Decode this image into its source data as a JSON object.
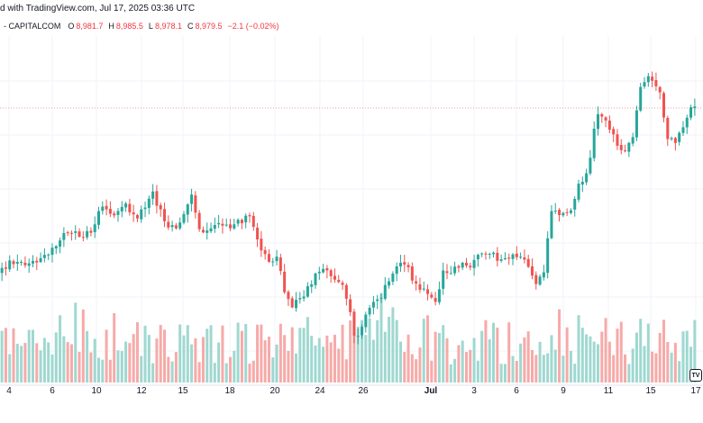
{
  "header": {
    "published": "d with TradingView.com, Jul 17, 2025 03:36 UTC",
    "symbol": "- CAPITALCOM",
    "o_label": "O",
    "o_value": "8,981.7",
    "h_label": "H",
    "h_value": "8,985.5",
    "l_label": "L",
    "l_value": "8,978.1",
    "c_label": "C",
    "c_value": "8,979.5",
    "change": "−2.1 (−0.02%)"
  },
  "colors": {
    "up": "#26a69a",
    "down": "#ef5350",
    "vol_up": "#9fd8d0",
    "vol_down": "#f6aaa8",
    "grid": "#f0f3fa",
    "price_line": "#f23645"
  },
  "logo_text": "TV",
  "chart_data": {
    "type": "candlestick",
    "x_tick_labels": [
      "4",
      "6",
      "10",
      "12",
      "15",
      "18",
      "20",
      "24",
      "26",
      "Jul",
      "3",
      "6",
      "9",
      "11",
      "15",
      "17"
    ],
    "last_price": 8979.5,
    "price_range_approx": [
      8830,
      9000
    ],
    "candles_generated": 180
  }
}
